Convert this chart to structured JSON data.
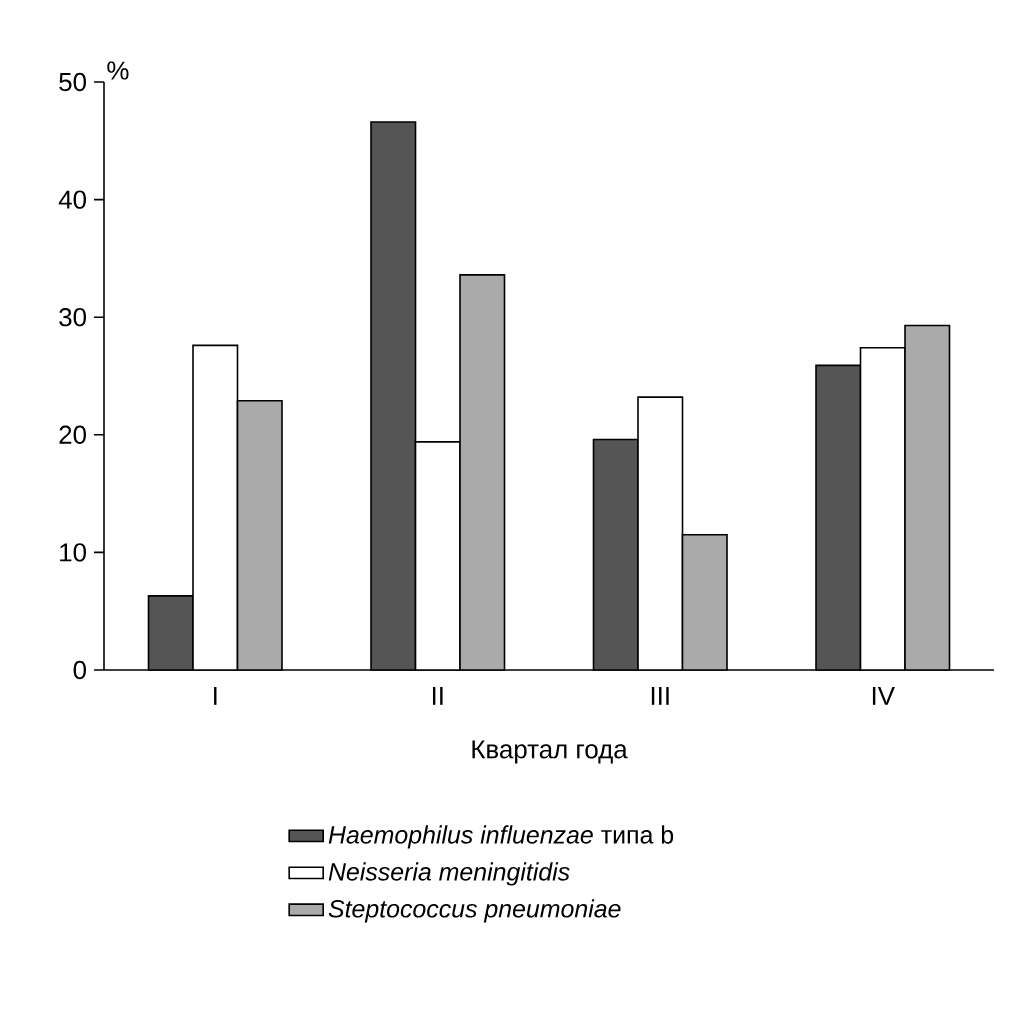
{
  "chart_data": {
    "type": "bar",
    "xlabel": "Квартал года",
    "ylabel": "%",
    "categories": [
      "I",
      "II",
      "III",
      "IV"
    ],
    "series": [
      {
        "name": "*Haemophilus influenzae* типа b",
        "color": "#555555",
        "values": [
          6.3,
          46.6,
          19.6,
          25.9
        ]
      },
      {
        "name": "*Neisseria meningitidis*",
        "color": "#ffffff",
        "values": [
          27.6,
          19.4,
          23.2,
          27.4
        ]
      },
      {
        "name": "*Steptococcus pneumoniae*",
        "color": "#aaaaaa",
        "values": [
          22.9,
          33.6,
          11.5,
          29.3
        ]
      }
    ],
    "ylim": [
      0,
      50
    ],
    "yticks": [
      0,
      10,
      20,
      30,
      40,
      50
    ],
    "legend": "bottom"
  }
}
